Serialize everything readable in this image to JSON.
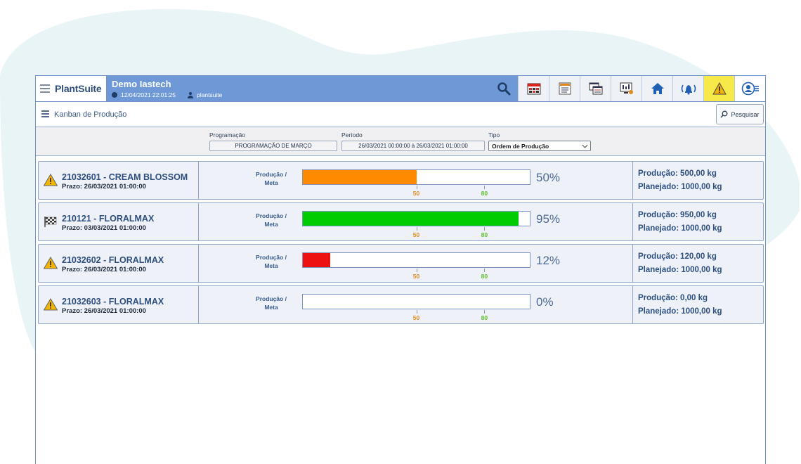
{
  "app": {
    "logo": "PlantSuite",
    "title": "Demo Iastech",
    "datetime": "12/04/2021 22:01:25",
    "user": "plantsuite"
  },
  "toolbar": {
    "icons": [
      "search-icon",
      "calendar-grid-icon",
      "list-report-icon",
      "windows-icon",
      "monitor-chart-icon",
      "home-icon",
      "alarm-bell-icon",
      "warning-icon",
      "user-menu-icon"
    ],
    "warning_color": "#f7e94a",
    "header_color": "#6e98d6"
  },
  "page": {
    "title": "Kanban de Produção",
    "search_label": "Pesquisar"
  },
  "filters": {
    "programacao_label": "Programação",
    "programacao_value": "PROGRAMAÇÃO DE MARÇO",
    "periodo_label": "Período",
    "periodo_value": "26/03/2021 00:00:00 à 26/03/2021 01:00:00",
    "tipo_label": "Tipo",
    "tipo_value": "Ordem de Produção"
  },
  "ticks": {
    "low": "50",
    "high": "80",
    "low_color": "#e08a1e",
    "high_color": "#5fbf2c"
  },
  "orders": [
    {
      "status_icon": "warning-icon",
      "title": "21032601 - CREAM BLOSSOM",
      "prazo": "Prazo: 26/03/2021 01:00:00",
      "label1": "Produção /",
      "label2": "Meta",
      "progress": 0.5,
      "percent": "50%",
      "bar_color": "#ff8a00",
      "producao": "Produção: 500,00 kg",
      "planejado": "Planejado: 1000,00 kg"
    },
    {
      "status_icon": "finish-flag-icon",
      "title": "210121 - FLORALMAX",
      "prazo": "Prazo: 03/03/2021 01:00:00",
      "label1": "Produção /",
      "label2": "Meta",
      "progress": 0.95,
      "percent": "95%",
      "bar_color": "#00cc00",
      "producao": "Produção: 950,00 kg",
      "planejado": "Planejado: 1000,00 kg"
    },
    {
      "status_icon": "warning-icon",
      "title": "21032602 - FLORALMAX",
      "prazo": "Prazo: 26/03/2021 01:00:00",
      "label1": "Produção /",
      "label2": "Meta",
      "progress": 0.12,
      "percent": "12%",
      "bar_color": "#ee1111",
      "producao": "Produção: 120,00 kg",
      "planejado": "Planejado: 1000,00 kg"
    },
    {
      "status_icon": "warning-icon",
      "title": "21032603 - FLORALMAX",
      "prazo": "Prazo: 26/03/2021 01:00:00",
      "label1": "Produção /",
      "label2": "Meta",
      "progress": 0,
      "percent": "0%",
      "bar_color": "#ffffff",
      "producao": "Produção: 0,00 kg",
      "planejado": "Planejado: 1000,00 kg"
    }
  ]
}
